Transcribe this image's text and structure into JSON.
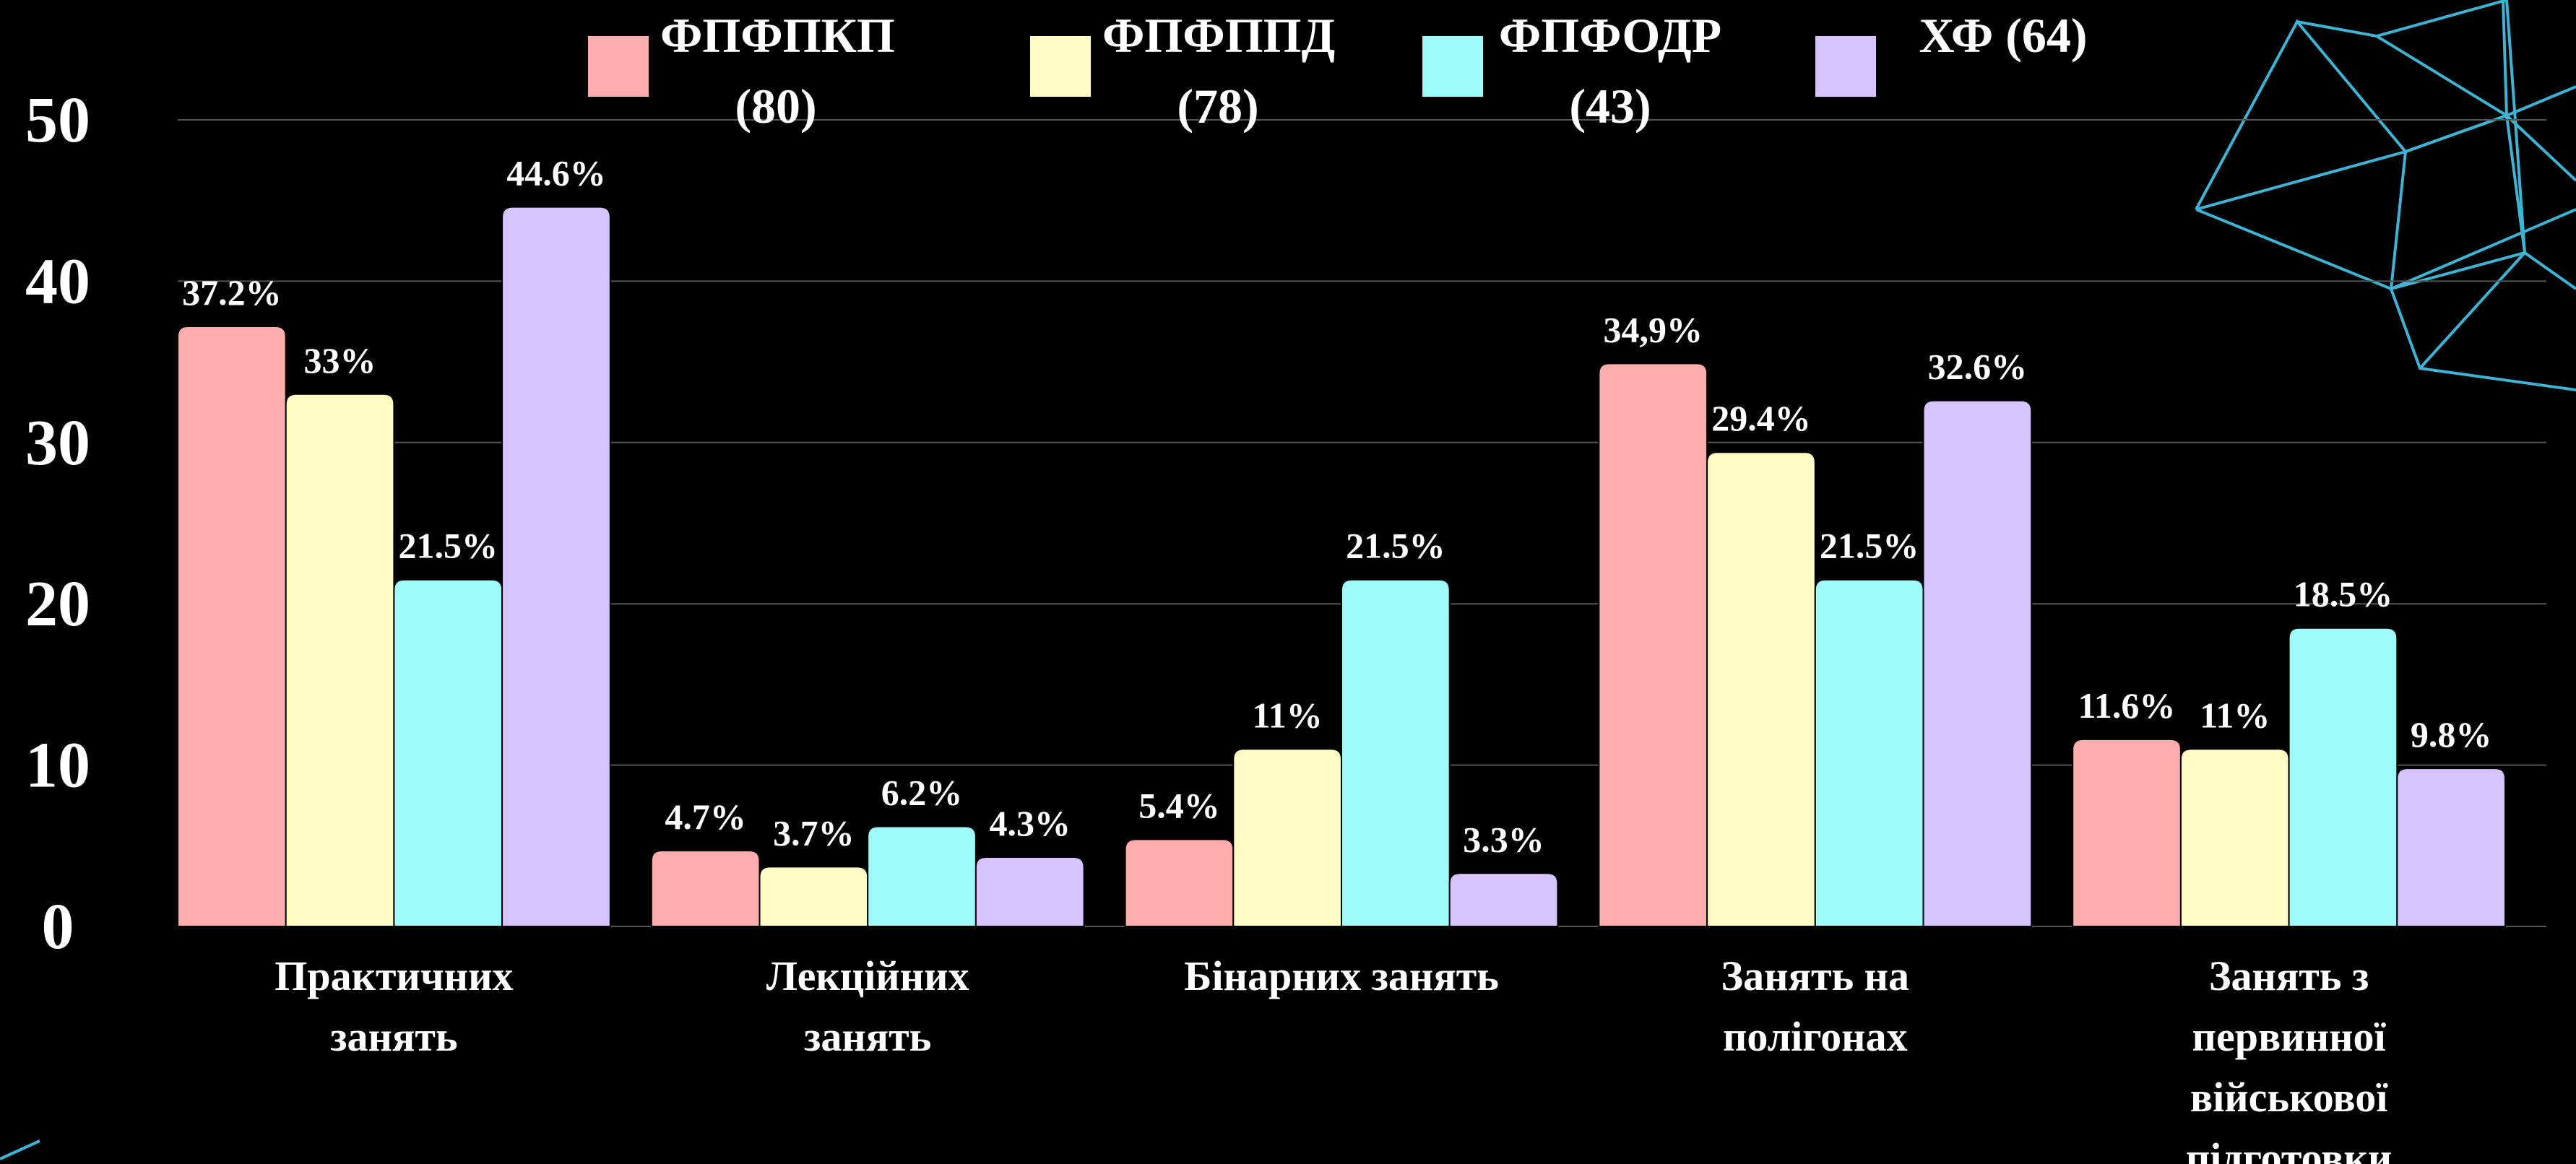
{
  "chart_data": {
    "type": "bar",
    "categories": [
      "Практичних занять",
      "Лекційних занять",
      "Бінарних занять",
      "Занять на полігонах",
      "Занять з первинної військової підготовки"
    ],
    "series": [
      {
        "name": "ФПФПКП (80)",
        "color": "#ffadad",
        "values": [
          37.2,
          4.7,
          5.4,
          34.9,
          11.6
        ],
        "value_labels": [
          "37.2%",
          "4.7%",
          "5.4%",
          "34,9%",
          "11.6%"
        ]
      },
      {
        "name": "ФПФППД (78)",
        "color": "#fdfdc4",
        "values": [
          33,
          3.7,
          11,
          29.4,
          11
        ],
        "value_labels": [
          "33%",
          "3.7%",
          "11%",
          "29.4%",
          "11%"
        ]
      },
      {
        "name": "ФПФОДР (43)",
        "color": "#a0fbfb",
        "values": [
          21.5,
          6.2,
          21.5,
          21.5,
          18.5
        ],
        "value_labels": [
          "21.5%",
          "6.2%",
          "21.5%",
          "21.5%",
          "18.5%"
        ]
      },
      {
        "name": "ХФ (64)",
        "color": "#d5c4ff",
        "values": [
          44.6,
          4.3,
          3.3,
          32.6,
          9.8
        ],
        "value_labels": [
          "44.6%",
          "4.3%",
          "3.3%",
          "32.6%",
          "9.8%"
        ]
      }
    ],
    "ylim": [
      0,
      50
    ],
    "yticks": [
      0,
      10,
      20,
      30,
      40,
      50
    ],
    "grid": true,
    "legend": "top"
  }
}
